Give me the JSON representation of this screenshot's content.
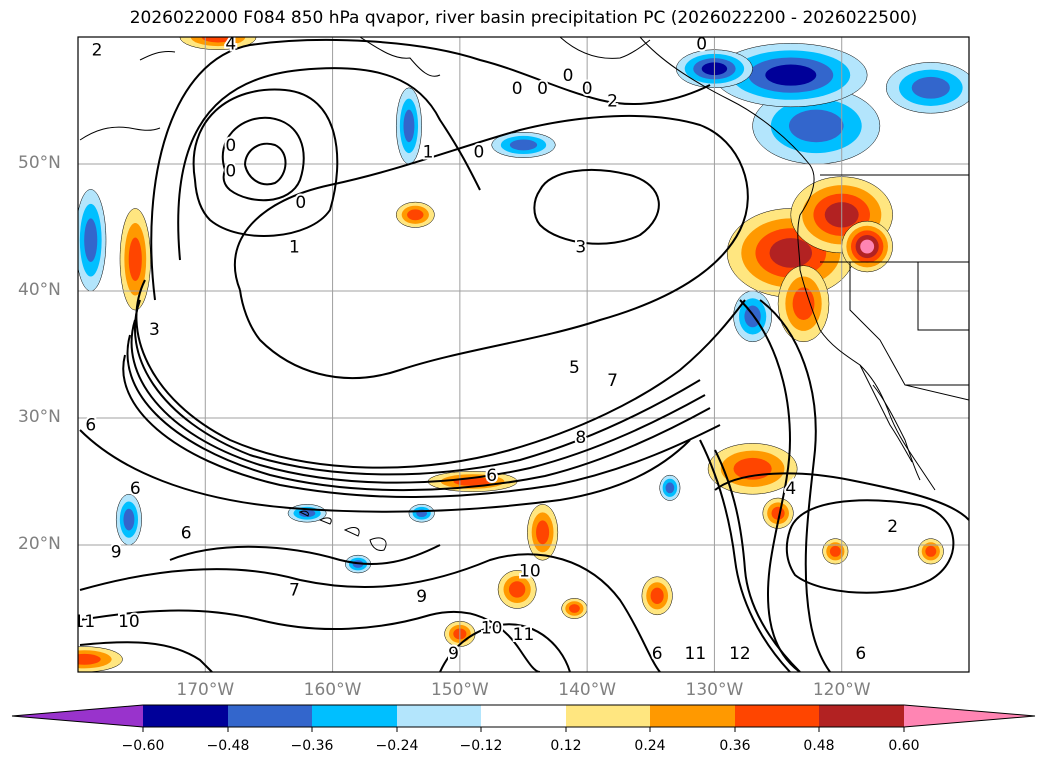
{
  "title": "2026022000 F084 850 hPa qvapor, river basin precipitation PC (2026022200 - 2026022500)",
  "lat_labels": [
    {
      "text": "50°N",
      "lat": 50
    },
    {
      "text": "40°N",
      "lat": 40
    },
    {
      "text": "30°N",
      "lat": 30
    },
    {
      "text": "20°N",
      "lat": 20
    }
  ],
  "lon_labels": [
    {
      "text": "170°W",
      "lon": -170
    },
    {
      "text": "160°W",
      "lon": -160
    },
    {
      "text": "150°W",
      "lon": -150
    },
    {
      "text": "140°W",
      "lon": -140
    },
    {
      "text": "130°W",
      "lon": -130
    },
    {
      "text": "120°W",
      "lon": -120
    }
  ],
  "colorbar": {
    "colors": [
      "#9933cc",
      "#000099",
      "#3366cc",
      "#00bfff",
      "#b3e5fc",
      "#ffffff",
      "#ffe680",
      "#ff9900",
      "#ff4500",
      "#b22222",
      "#ff85b3"
    ],
    "tick_labels": [
      "−0.60",
      "−0.48",
      "−0.36",
      "−0.24",
      "−0.12",
      "0.12",
      "0.24",
      "0.36",
      "0.48",
      "0.60"
    ]
  },
  "contour_labels": [
    {
      "text": "2",
      "lon": -178.5,
      "lat": 59
    },
    {
      "text": "4",
      "lon": -168,
      "lat": 59.5
    },
    {
      "text": "0",
      "lon": -168,
      "lat": 51.5
    },
    {
      "text": "0",
      "lon": -168,
      "lat": 49.5
    },
    {
      "text": "0",
      "lon": -162.5,
      "lat": 47
    },
    {
      "text": "1",
      "lon": -163,
      "lat": 43.5
    },
    {
      "text": "1",
      "lon": -152.5,
      "lat": 51
    },
    {
      "text": "0",
      "lon": -148.5,
      "lat": 51
    },
    {
      "text": "0",
      "lon": -145.5,
      "lat": 56
    },
    {
      "text": "0",
      "lon": -143.5,
      "lat": 56
    },
    {
      "text": "0",
      "lon": -141.5,
      "lat": 57
    },
    {
      "text": "0",
      "lon": -140,
      "lat": 56
    },
    {
      "text": "0",
      "lon": -131,
      "lat": 59.5
    },
    {
      "text": "2",
      "lon": -138,
      "lat": 55
    },
    {
      "text": "3",
      "lon": -140.5,
      "lat": 43.5
    },
    {
      "text": "3",
      "lon": -174,
      "lat": 37
    },
    {
      "text": "5",
      "lon": -141,
      "lat": 34
    },
    {
      "text": "7",
      "lon": -138,
      "lat": 33
    },
    {
      "text": "8",
      "lon": -140.5,
      "lat": 28.5
    },
    {
      "text": "6",
      "lon": -147.5,
      "lat": 25.5
    },
    {
      "text": "6",
      "lon": -179,
      "lat": 29.5
    },
    {
      "text": "6",
      "lon": -175.5,
      "lat": 24.5
    },
    {
      "text": "6",
      "lon": -171.5,
      "lat": 21
    },
    {
      "text": "9",
      "lon": -177,
      "lat": 19.5
    },
    {
      "text": "7",
      "lon": -163,
      "lat": 16.5
    },
    {
      "text": "9",
      "lon": -153,
      "lat": 16
    },
    {
      "text": "10",
      "lon": -144.5,
      "lat": 18
    },
    {
      "text": "10",
      "lon": -176,
      "lat": 14
    },
    {
      "text": "11",
      "lon": -179.5,
      "lat": 14
    },
    {
      "text": "10",
      "lon": -147.5,
      "lat": 13.5
    },
    {
      "text": "11",
      "lon": -145,
      "lat": 13
    },
    {
      "text": "9",
      "lon": -150.5,
      "lat": 11.5
    },
    {
      "text": "12",
      "lon": -128,
      "lat": 11.5
    },
    {
      "text": "11",
      "lon": -131.5,
      "lat": 11.5
    },
    {
      "text": "6",
      "lon": -134.5,
      "lat": 11.5
    },
    {
      "text": "6",
      "lon": -118.5,
      "lat": 11.5
    },
    {
      "text": "4",
      "lon": -124,
      "lat": 24.5
    },
    {
      "text": "2",
      "lon": -116,
      "lat": 21.5
    }
  ],
  "precip_blobs": [
    {
      "lon": -124,
      "lat": 43,
      "rx": 5,
      "ry": 3.5,
      "level": 0.5
    },
    {
      "lon": -120,
      "lat": 46,
      "rx": 4,
      "ry": 3,
      "level": 0.5
    },
    {
      "lon": -118,
      "lat": 43.5,
      "rx": 2,
      "ry": 2,
      "level": 0.62
    },
    {
      "lon": -123,
      "lat": 39,
      "rx": 2,
      "ry": 3,
      "level": 0.38
    },
    {
      "lon": -127,
      "lat": 26,
      "rx": 3.5,
      "ry": 2,
      "level": 0.4
    },
    {
      "lon": -125,
      "lat": 22.5,
      "rx": 1.2,
      "ry": 1.2,
      "level": 0.4
    },
    {
      "lon": -120.5,
      "lat": 19.5,
      "rx": 1,
      "ry": 1,
      "level": 0.38
    },
    {
      "lon": -113,
      "lat": 19.5,
      "rx": 1,
      "ry": 1,
      "level": 0.38
    },
    {
      "lon": -175.5,
      "lat": 42.5,
      "rx": 1.2,
      "ry": 4,
      "level": 0.4
    },
    {
      "lon": -153.5,
      "lat": 46,
      "rx": 1.5,
      "ry": 1,
      "level": 0.4
    },
    {
      "lon": -149,
      "lat": 25,
      "rx": 3.5,
      "ry": 0.8,
      "level": 0.38
    },
    {
      "lon": -143.5,
      "lat": 21,
      "rx": 1.2,
      "ry": 2.2,
      "level": 0.38
    },
    {
      "lon": -145.5,
      "lat": 16.5,
      "rx": 1.5,
      "ry": 1.5,
      "level": 0.4
    },
    {
      "lon": -141,
      "lat": 15,
      "rx": 1,
      "ry": 0.8,
      "level": 0.38
    },
    {
      "lon": -134.5,
      "lat": 16,
      "rx": 1.2,
      "ry": 1.5,
      "level": 0.4
    },
    {
      "lon": -150,
      "lat": 13,
      "rx": 1.2,
      "ry": 1,
      "level": 0.38
    },
    {
      "lon": -179.5,
      "lat": 11,
      "rx": 3,
      "ry": 1,
      "level": 0.4
    },
    {
      "lon": -169,
      "lat": 60,
      "rx": 3,
      "ry": 1,
      "level": 0.4
    },
    {
      "lon": -122,
      "lat": 53,
      "rx": 5,
      "ry": 3,
      "level": -0.45
    },
    {
      "lon": -124,
      "lat": 57,
      "rx": 6,
      "ry": 2.5,
      "level": -0.5
    },
    {
      "lon": -130,
      "lat": 57.5,
      "rx": 3,
      "ry": 1.5,
      "level": -0.55
    },
    {
      "lon": -113,
      "lat": 56,
      "rx": 3.5,
      "ry": 2,
      "level": -0.42
    },
    {
      "lon": -127,
      "lat": 38,
      "rx": 1.5,
      "ry": 2,
      "level": -0.4
    },
    {
      "lon": -179,
      "lat": 44,
      "rx": 1.2,
      "ry": 4,
      "level": -0.4
    },
    {
      "lon": -154,
      "lat": 53,
      "rx": 1,
      "ry": 3,
      "level": -0.4
    },
    {
      "lon": -145,
      "lat": 51.5,
      "rx": 2.5,
      "ry": 1,
      "level": -0.38
    },
    {
      "lon": -176,
      "lat": 22,
      "rx": 1,
      "ry": 2,
      "level": -0.4
    },
    {
      "lon": -162,
      "lat": 22.5,
      "rx": 1.5,
      "ry": 0.7,
      "level": -0.38
    },
    {
      "lon": -153,
      "lat": 22.5,
      "rx": 1,
      "ry": 0.7,
      "level": -0.38
    },
    {
      "lon": -158,
      "lat": 18.5,
      "rx": 1,
      "ry": 0.7,
      "level": -0.38
    },
    {
      "lon": -133.5,
      "lat": 24.5,
      "rx": 0.8,
      "ry": 1,
      "level": -0.38
    }
  ]
}
